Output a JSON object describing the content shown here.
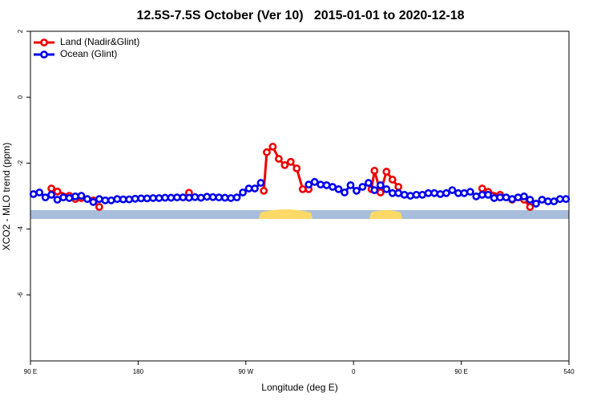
{
  "chart_data": {
    "type": "line",
    "title": "12.5S-7.5S October (Ver 10)   2015-01-01 to 2020-12-18",
    "xlabel": "Longitude (deg E)",
    "ylabel": "XCO2 - MLO trend (ppm)",
    "xlim": [
      90,
      540
    ],
    "xticks": [
      {
        "value": 90,
        "label": "90 E"
      },
      180,
      {
        "value": 270,
        "label": "90 W"
      },
      {
        "value": 360,
        "label": "0"
      },
      {
        "value": 450,
        "label": "90 E"
      },
      540
    ],
    "ylim": [
      -8,
      2
    ],
    "yticks": [
      2,
      0,
      -2,
      -4,
      -6
    ],
    "legend": "upper left",
    "series": [
      {
        "name": "Land (Nadir&Glint)",
        "color": "#ee0000",
        "x": [
          107.5,
          112.5,
          122.5,
          127.5,
          132.5,
          142.5,
          147.5,
          null,
          222.5,
          null,
          285,
          287.5,
          292.5,
          297.5,
          302.5,
          307.5,
          312.5,
          317.5,
          322.5,
          null,
          375,
          377.5,
          382.5,
          387.5,
          392.5,
          397.5,
          null,
          467.5,
          472.5,
          482.5,
          492.5,
          502.5,
          507.5
        ],
        "values": [
          -2.77,
          -2.86,
          -2.99,
          -3.09,
          -3.06,
          -3.13,
          -3.33,
          null,
          -2.9,
          null,
          -2.84,
          -1.67,
          -1.5,
          -1.87,
          -2.06,
          -1.96,
          -2.16,
          -2.79,
          -2.79,
          null,
          -2.79,
          -2.23,
          -2.89,
          -2.26,
          -2.5,
          -2.72,
          null,
          -2.77,
          -2.87,
          -2.96,
          -3.11,
          -3.11,
          -3.33
        ]
      },
      {
        "name": "Ocean (Glint)",
        "color": "#0000ee",
        "x": [
          92.5,
          97.5,
          102.5,
          107.5,
          112.5,
          117.5,
          122.5,
          127.5,
          132.5,
          137.5,
          142.5,
          147.5,
          152.5,
          157.5,
          162.5,
          167.5,
          172.5,
          177.5,
          182.5,
          187.5,
          192.5,
          197.5,
          202.5,
          207.5,
          212.5,
          217.5,
          222.5,
          227.5,
          232.5,
          237.5,
          242.5,
          247.5,
          252.5,
          257.5,
          262.5,
          267.5,
          272.5,
          277.5,
          282.5,
          287.5,
          292.5,
          297.5,
          302.5,
          307.5,
          312.5,
          317.5,
          322.5,
          327.5,
          332.5,
          337.5,
          342.5,
          347.5,
          352.5,
          357.5,
          362.5,
          367.5,
          372.5,
          377.5,
          382.5,
          387.5,
          392.5,
          397.5,
          402.5,
          407.5,
          412.5,
          417.5,
          422.5,
          427.5,
          432.5,
          437.5,
          442.5,
          447.5,
          452.5,
          457.5,
          462.5,
          467.5,
          472.5,
          477.5,
          482.5,
          487.5,
          492.5,
          497.5,
          502.5,
          507.5,
          512.5,
          517.5,
          522.5,
          527.5,
          532.5,
          537.5
        ],
        "values": [
          -2.94,
          -2.89,
          -3.04,
          -2.96,
          -3.11,
          -3.04,
          -3.06,
          -3.01,
          -2.99,
          -3.09,
          -3.18,
          -3.09,
          -3.13,
          -3.13,
          -3.09,
          -3.1,
          -3.1,
          -3.08,
          -3.07,
          -3.07,
          -3.06,
          -3.06,
          -3.05,
          -3.05,
          -3.04,
          -3.04,
          -3.05,
          -3.03,
          -3.05,
          -3.02,
          -3.03,
          -3.04,
          -3.05,
          -3.06,
          -3.04,
          -2.89,
          -2.77,
          -2.77,
          -2.6,
          null,
          null,
          null,
          null,
          null,
          null,
          null,
          -2.65,
          -2.57,
          -2.65,
          -2.67,
          -2.72,
          -2.79,
          -2.89,
          -2.67,
          -2.84,
          -2.72,
          -2.6,
          -2.82,
          -2.67,
          -2.79,
          -2.91,
          -2.91,
          -2.96,
          -2.99,
          -2.96,
          -2.96,
          -2.91,
          -2.91,
          -2.94,
          -2.91,
          -2.82,
          -2.91,
          -2.91,
          -2.87,
          -3.01,
          -2.96,
          -2.96,
          -3.06,
          -3.04,
          -3.04,
          -3.09,
          -3.04,
          -3.01,
          -3.11,
          -3.23,
          -3.11,
          -3.16,
          -3.16,
          -3.09,
          -3.09
        ]
      }
    ]
  }
}
